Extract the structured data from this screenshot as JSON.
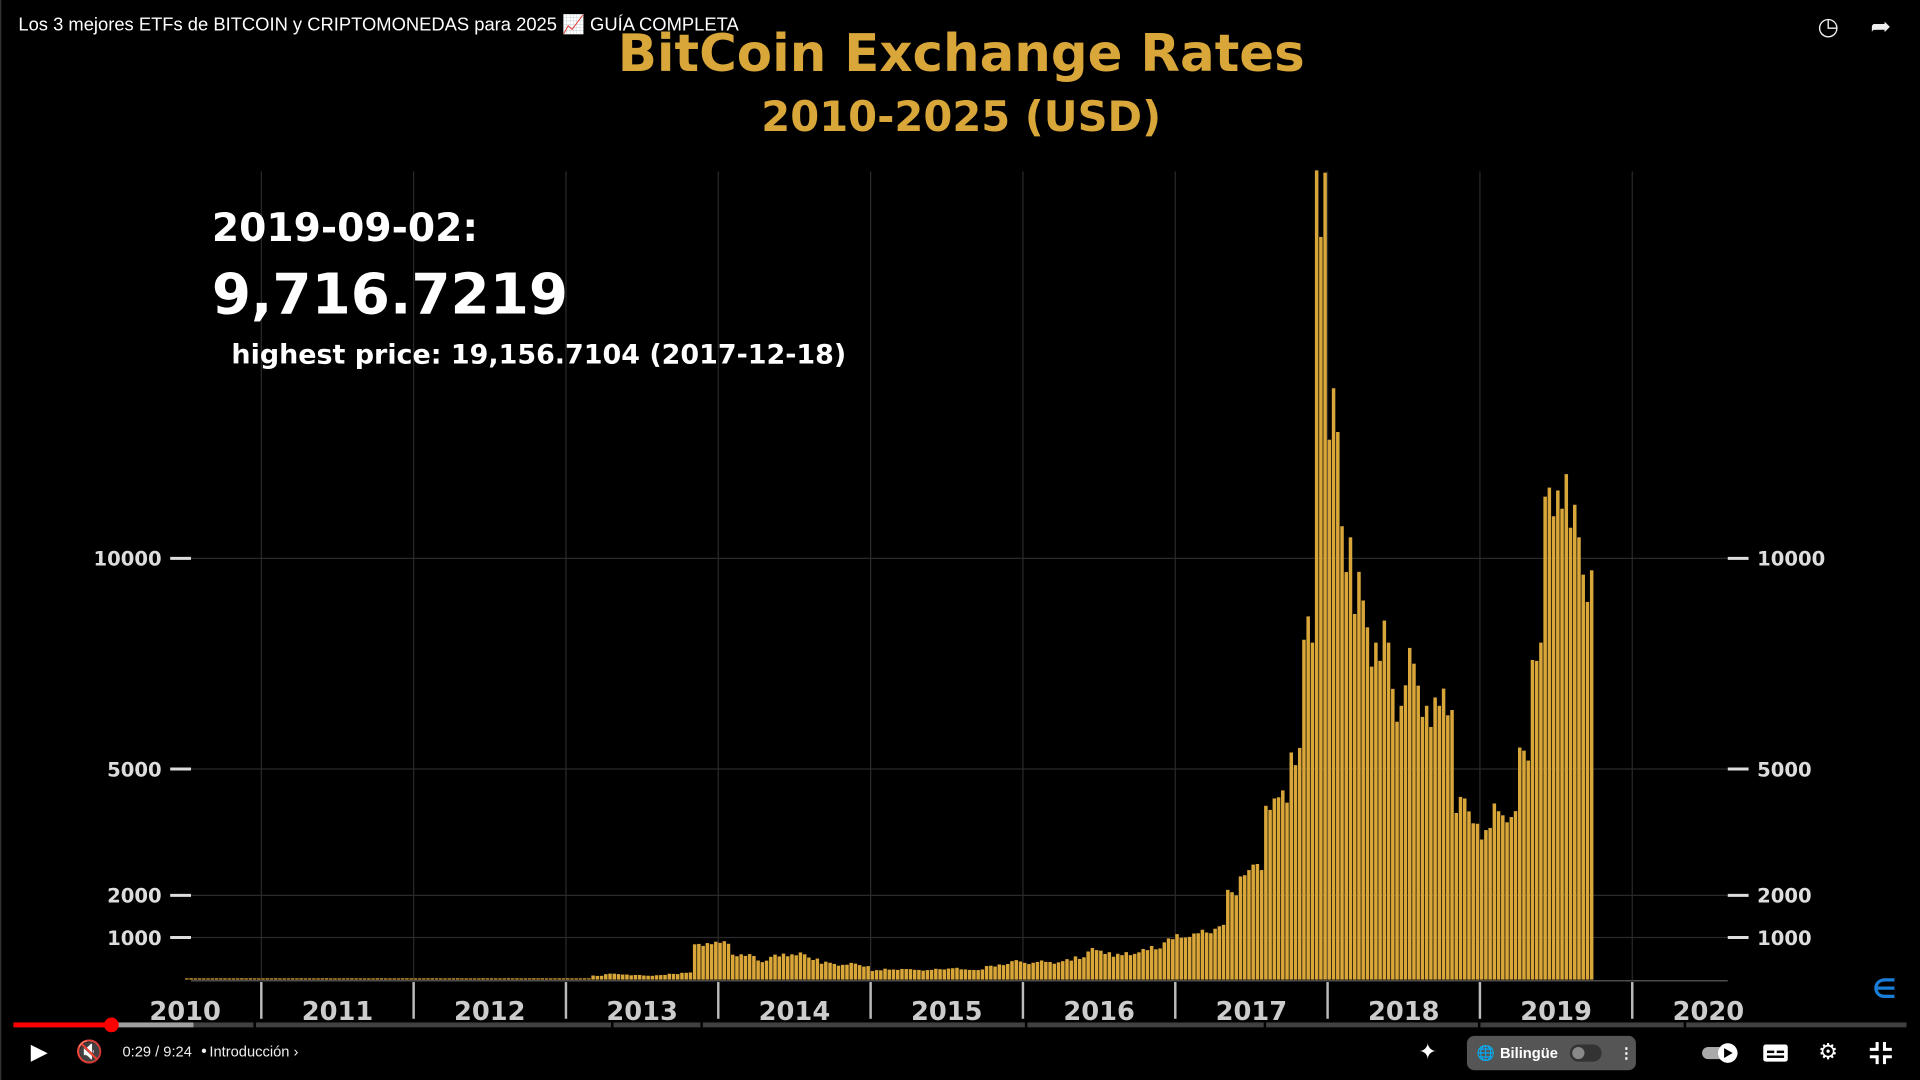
{
  "video": {
    "title": "Los 3 mejores ETFs de BITCOIN y CRIPTOMONEDAS para 2025 📈 GUÍA COMPLETA",
    "time": "0:29 / 9:24",
    "chapter": "Introducción",
    "bilingual_label": "Bilingüe",
    "progress_percent": 5.1
  },
  "icons": {
    "watch_later": "clock-icon",
    "share": "share-icon",
    "play": "play-icon",
    "mute": "muted-icon",
    "ai": "sparkle-icon",
    "autoplay": "autoplay-toggle",
    "captions": "captions-icon",
    "settings": "gear-icon",
    "exit_fullscreen": "exit-fullscreen-icon"
  },
  "chart_data": {
    "type": "bar",
    "title": "BitCoin Exchange Rates",
    "subtitle": "2010-2025 (USD)",
    "annotation": {
      "date": "2019-09-02:",
      "value": "9,716.7219",
      "highest": "highest price: 19,156.7104 (2017-12-18)"
    },
    "yticks": [
      1000,
      2000,
      5000,
      10000
    ],
    "ytick_labels": [
      "1000",
      "2000",
      "5000",
      "10000"
    ],
    "ylim": [
      0,
      19200
    ],
    "xtick_labels": [
      "2010",
      "2011",
      "2012",
      "2013",
      "2014",
      "2015",
      "2016",
      "2017",
      "2018",
      "2019",
      "2020"
    ],
    "start": "2010-07",
    "monthly_values": [
      0.07,
      0.07,
      0.06,
      0.1,
      0.25,
      0.3,
      0.5,
      1,
      0.8,
      1,
      8,
      18,
      14,
      10,
      5,
      3,
      3,
      4,
      6,
      5,
      5,
      5,
      5,
      6,
      8,
      10,
      12,
      11,
      11,
      13,
      15,
      30,
      90,
      140,
      120,
      110,
      90,
      110,
      130,
      170,
      800,
      900,
      850,
      600,
      560,
      450,
      550,
      600,
      600,
      500,
      400,
      350,
      380,
      320,
      220,
      240,
      250,
      230,
      230,
      240,
      280,
      230,
      240,
      310,
      370,
      430,
      400,
      420,
      410,
      450,
      530,
      700,
      650,
      580,
      610,
      700,
      740,
      960,
      1000,
      1100,
      1100,
      1300,
      2000,
      2600,
      2600,
      4300,
      4200,
      5500,
      8000,
      19156.7,
      13000,
      10500,
      9000,
      8000,
      8000,
      6500,
      7500,
      6500,
      6500,
      6400,
      4300,
      3700,
      3600,
      3900,
      4000,
      5200,
      8000,
      11000,
      12000,
      10500,
      9716.7
    ],
    "color": "#d9a63a"
  }
}
